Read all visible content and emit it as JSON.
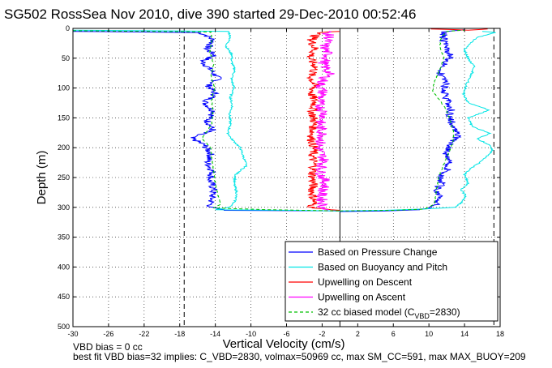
{
  "chart_data": {
    "type": "line",
    "title": "SG502 RossSea Nov 2010, dive 390 started 29-Dec-2010 00:52:46",
    "xlabel": "Vertical Velocity (cm/s)",
    "ylabel": "Depth (m)",
    "xlim": [
      -30,
      18
    ],
    "ylim": [
      0,
      500
    ],
    "y_reversed": true,
    "grid": "dotted",
    "legend_position": "bottom-right",
    "x_ticks": [
      -30,
      -26,
      -22,
      -18,
      -14,
      -10,
      -6,
      -2,
      2,
      6,
      10,
      14,
      18
    ],
    "y_ticks": [
      0,
      50,
      100,
      150,
      200,
      250,
      300,
      350,
      400,
      450,
      500
    ],
    "vertical_lines": [
      {
        "x": -17.5,
        "style": "dashed",
        "color": "#000000"
      },
      {
        "x": 17.3,
        "style": "dashed",
        "color": "#000000"
      },
      {
        "x": 0,
        "style": "solid",
        "color": "#000000"
      }
    ],
    "series": [
      {
        "name": "Based on Pressure Change",
        "color": "#0000ff",
        "style": "solid",
        "descent": [
          [
            -30,
            5
          ],
          [
            -16,
            7
          ],
          [
            -15.2,
            10
          ],
          [
            -14.2,
            20
          ],
          [
            -15,
            35
          ],
          [
            -14,
            45
          ],
          [
            -15.5,
            55
          ],
          [
            -14.5,
            70
          ],
          [
            -13.6,
            85
          ],
          [
            -14.8,
            95
          ],
          [
            -14,
            110
          ],
          [
            -15.2,
            125
          ],
          [
            -14.1,
            140
          ],
          [
            -14.9,
            155
          ],
          [
            -14.3,
            170
          ],
          [
            -16.8,
            183
          ],
          [
            -15.3,
            195
          ],
          [
            -14.5,
            210
          ],
          [
            -14.9,
            225
          ],
          [
            -14.3,
            240
          ],
          [
            -14.6,
            255
          ],
          [
            -14.2,
            270
          ],
          [
            -14.4,
            285
          ],
          [
            -14.6,
            300
          ],
          [
            -13,
            305
          ],
          [
            0,
            306
          ]
        ],
        "ascent": [
          [
            0,
            307
          ],
          [
            5,
            306
          ],
          [
            9,
            304
          ],
          [
            10.5,
            300
          ],
          [
            11,
            290
          ],
          [
            11.4,
            280
          ],
          [
            10.8,
            270
          ],
          [
            11.5,
            260
          ],
          [
            11.2,
            250
          ],
          [
            12,
            240
          ],
          [
            12.3,
            225
          ],
          [
            11.9,
            210
          ],
          [
            12.5,
            195
          ],
          [
            13.2,
            180
          ],
          [
            12.8,
            165
          ],
          [
            12.3,
            150
          ],
          [
            12.5,
            135
          ],
          [
            12.1,
            120
          ],
          [
            11.6,
            105
          ],
          [
            11.9,
            90
          ],
          [
            11.2,
            75
          ],
          [
            11.9,
            60
          ],
          [
            12.4,
            45
          ],
          [
            11.8,
            30
          ],
          [
            11.6,
            15
          ],
          [
            11.8,
            5
          ],
          [
            14,
            2
          ]
        ]
      },
      {
        "name": "Based on Buoyancy and Pitch",
        "color": "#00e5e5",
        "style": "solid",
        "descent": [
          [
            -30,
            3
          ],
          [
            -12.5,
            5
          ],
          [
            -12.3,
            15
          ],
          [
            -12.8,
            30
          ],
          [
            -12.1,
            45
          ],
          [
            -12.2,
            55
          ],
          [
            -11.8,
            70
          ],
          [
            -12.2,
            85
          ],
          [
            -11.9,
            100
          ],
          [
            -12.3,
            115
          ],
          [
            -12.1,
            130
          ],
          [
            -12.4,
            145
          ],
          [
            -12.3,
            160
          ],
          [
            -12.6,
            175
          ],
          [
            -12.2,
            185
          ],
          [
            -11.2,
            200
          ],
          [
            -10.5,
            230
          ],
          [
            -11.7,
            245
          ],
          [
            -11.9,
            260
          ],
          [
            -11.6,
            275
          ],
          [
            -11.8,
            290
          ],
          [
            -12.4,
            300
          ],
          [
            -14,
            304
          ],
          [
            -5,
            305
          ],
          [
            0,
            306
          ]
        ],
        "ascent": [
          [
            0,
            306
          ],
          [
            5,
            305
          ],
          [
            9,
            303
          ],
          [
            13,
            300
          ],
          [
            13.8,
            290
          ],
          [
            14.1,
            280
          ],
          [
            13.6,
            270
          ],
          [
            14.4,
            260
          ],
          [
            14,
            245
          ],
          [
            14.7,
            235
          ],
          [
            16,
            222
          ],
          [
            17.1,
            205
          ],
          [
            16.8,
            195
          ],
          [
            15.4,
            185
          ],
          [
            16.9,
            176
          ],
          [
            14.9,
            165
          ],
          [
            14.4,
            150
          ],
          [
            16.8,
            137
          ],
          [
            14.4,
            125
          ],
          [
            13.9,
            110
          ],
          [
            14.2,
            95
          ],
          [
            14.7,
            80
          ],
          [
            15.1,
            65
          ],
          [
            14.4,
            50
          ],
          [
            14,
            35
          ],
          [
            15.4,
            15
          ],
          [
            17.5,
            7
          ],
          [
            16,
            5
          ]
        ]
      },
      {
        "name": "Upwelling on Descent",
        "color": "#ff0000",
        "style": "solid",
        "descent": [
          [
            0,
            5
          ],
          [
            -2.5,
            8
          ],
          [
            -3.2,
            20
          ],
          [
            -2.8,
            35
          ],
          [
            -3.4,
            50
          ],
          [
            -2.7,
            65
          ],
          [
            -3.3,
            80
          ],
          [
            -2.9,
            95
          ],
          [
            -3.2,
            110
          ],
          [
            -2.8,
            125
          ],
          [
            -3.1,
            140
          ],
          [
            -2.9,
            155
          ],
          [
            -3.0,
            170
          ],
          [
            -3.2,
            185
          ],
          [
            -2.9,
            200
          ],
          [
            -3.1,
            215
          ],
          [
            -2.9,
            230
          ],
          [
            -3.1,
            245
          ],
          [
            -3.0,
            260
          ],
          [
            -3.1,
            275
          ],
          [
            -2.9,
            290
          ],
          [
            -3.2,
            300
          ],
          [
            -1,
            304
          ],
          [
            0,
            305
          ]
        ],
        "ascent": [
          [
            10.2,
            1
          ],
          [
            12.8,
            2
          ],
          [
            14.4,
            3
          ],
          [
            15.6,
            2
          ],
          [
            16.6,
            1
          ]
        ]
      },
      {
        "name": "Upwelling on Ascent",
        "color": "#ff00ff",
        "style": "solid",
        "descent": [
          [
            -1.5,
            5
          ],
          [
            -1.2,
            15
          ],
          [
            -1.8,
            30
          ],
          [
            -1.3,
            45
          ],
          [
            -1.9,
            60
          ],
          [
            -1.2,
            75
          ],
          [
            -1.8,
            85
          ],
          [
            -2.2,
            95
          ],
          [
            -1.9,
            110
          ],
          [
            -2.4,
            125
          ],
          [
            -1.7,
            145
          ],
          [
            -2.3,
            160
          ],
          [
            -1.9,
            180
          ],
          [
            -2.4,
            200
          ],
          [
            -1.8,
            220
          ],
          [
            -2.2,
            240
          ],
          [
            -1.6,
            260
          ],
          [
            -2.1,
            280
          ],
          [
            -1.9,
            300
          ],
          [
            -1.5,
            305
          ]
        ],
        "ascent": []
      },
      {
        "name": "32 cc biased model (C_VBD=2830)",
        "color": "#00c000",
        "style": "dashed",
        "descent": [
          [
            -30,
            4
          ],
          [
            -14.5,
            6
          ],
          [
            -14.4,
            20
          ],
          [
            -14.6,
            40
          ],
          [
            -14.2,
            60
          ],
          [
            -14.5,
            80
          ],
          [
            -14.1,
            100
          ],
          [
            -14.4,
            120
          ],
          [
            -14.3,
            140
          ],
          [
            -14.4,
            160
          ],
          [
            -15.5,
            185
          ],
          [
            -14.5,
            200
          ],
          [
            -14.4,
            220
          ],
          [
            -14.2,
            240
          ],
          [
            -14,
            260
          ],
          [
            -13.7,
            280
          ],
          [
            -13.4,
            295
          ],
          [
            -14.2,
            301
          ],
          [
            -8,
            304
          ],
          [
            0,
            306
          ]
        ],
        "ascent": [
          [
            0,
            306
          ],
          [
            6,
            305
          ],
          [
            9.5,
            303
          ],
          [
            10.6,
            295
          ],
          [
            10.8,
            275
          ],
          [
            11.1,
            250
          ],
          [
            11.6,
            230
          ],
          [
            12.2,
            210
          ],
          [
            12.7,
            190
          ],
          [
            12.8,
            175
          ],
          [
            12.4,
            155
          ],
          [
            11.9,
            135
          ],
          [
            11.2,
            120
          ],
          [
            10.4,
            105
          ],
          [
            10.6,
            90
          ],
          [
            11.2,
            70
          ],
          [
            11.7,
            50
          ],
          [
            11.2,
            30
          ],
          [
            11.4,
            15
          ],
          [
            12,
            5
          ],
          [
            14,
            3
          ]
        ]
      }
    ],
    "legend_label_main": "32 cc biased model (C",
    "legend_label_sub": "VBD",
    "legend_label_end": "=2830)"
  },
  "notes": {
    "line1": "VBD bias = 0 cc",
    "line2": "best fit VBD bias=32 implies: C_VBD=2830, volmax=50969 cc, max SM_CC=591, max MAX_BUOY=209"
  }
}
